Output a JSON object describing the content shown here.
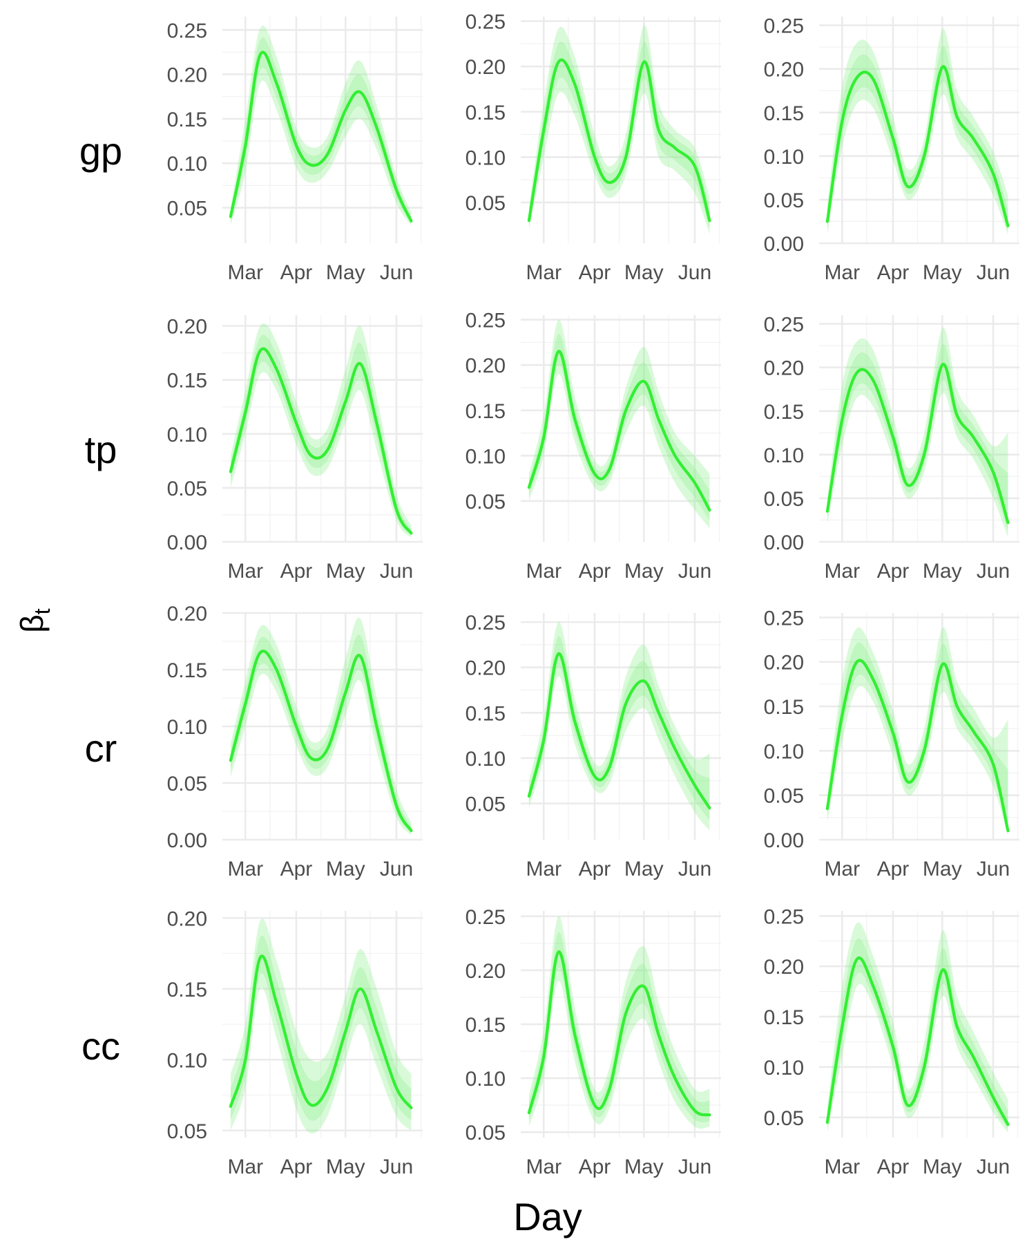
{
  "figure": {
    "xlabel": "Day",
    "ylabel": "β",
    "ylabel_sub": "t",
    "row_labels": [
      "gp",
      "tp",
      "cr",
      "cc"
    ],
    "colors": {
      "line": "#33ee33",
      "band": "#88f088"
    }
  },
  "chart_data": [
    {
      "row": "gp",
      "col": 1,
      "type": "line",
      "x": [
        "Feb 20",
        "Mar 1",
        "Mar 10",
        "Mar 20",
        "Apr 1",
        "Apr 10",
        "Apr 20",
        "May 1",
        "May 10",
        "May 20",
        "Jun 1",
        "Jun 10"
      ],
      "y": [
        0.04,
        0.12,
        0.222,
        0.19,
        0.12,
        0.098,
        0.11,
        0.16,
        0.18,
        0.14,
        0.07,
        0.035
      ],
      "band_outer_lo": [
        0.03,
        0.09,
        0.19,
        0.16,
        0.095,
        0.078,
        0.09,
        0.13,
        0.15,
        0.115,
        0.055,
        0.03
      ],
      "band_outer_hi": [
        0.05,
        0.15,
        0.252,
        0.22,
        0.14,
        0.118,
        0.13,
        0.19,
        0.215,
        0.165,
        0.085,
        0.045
      ],
      "ylim": [
        0.01,
        0.265
      ],
      "yticks": [
        "0.05",
        "0.10",
        "0.15",
        "0.20",
        "0.25"
      ],
      "xticks": [
        "Mar",
        "Apr",
        "May",
        "Jun"
      ]
    },
    {
      "row": "gp",
      "col": 2,
      "type": "line",
      "x": [
        "Feb 20",
        "Mar 1",
        "Mar 10",
        "Mar 20",
        "Apr 1",
        "Apr 10",
        "Apr 20",
        "May 1",
        "May 10",
        "May 20",
        "Jun 1",
        "Jun 10"
      ],
      "y": [
        0.03,
        0.13,
        0.205,
        0.18,
        0.1,
        0.072,
        0.1,
        0.205,
        0.13,
        0.11,
        0.09,
        0.03
      ],
      "band_outer_lo": [
        0.02,
        0.1,
        0.17,
        0.145,
        0.08,
        0.055,
        0.08,
        0.17,
        0.1,
        0.085,
        0.06,
        0.015
      ],
      "band_outer_hi": [
        0.045,
        0.16,
        0.242,
        0.21,
        0.125,
        0.09,
        0.125,
        0.245,
        0.16,
        0.13,
        0.11,
        0.055
      ],
      "ylim": [
        0.005,
        0.255
      ],
      "yticks": [
        "0.05",
        "0.10",
        "0.15",
        "0.20",
        "0.25"
      ],
      "xticks": [
        "Mar",
        "Apr",
        "May",
        "Jun"
      ]
    },
    {
      "row": "gp",
      "col": 3,
      "type": "line",
      "x": [
        "Feb 20",
        "Mar 1",
        "Mar 10",
        "Mar 20",
        "Apr 1",
        "Apr 10",
        "Apr 20",
        "May 1",
        "May 10",
        "May 20",
        "Jun 1",
        "Jun 10"
      ],
      "y": [
        0.025,
        0.14,
        0.19,
        0.188,
        0.12,
        0.065,
        0.1,
        0.202,
        0.145,
        0.12,
        0.08,
        0.02
      ],
      "band_outer_lo": [
        0.01,
        0.11,
        0.16,
        0.155,
        0.095,
        0.05,
        0.08,
        0.17,
        0.12,
        0.095,
        0.055,
        0.01
      ],
      "band_outer_hi": [
        0.045,
        0.18,
        0.23,
        0.22,
        0.145,
        0.085,
        0.12,
        0.245,
        0.175,
        0.145,
        0.105,
        0.055
      ],
      "ylim": [
        0.0,
        0.26
      ],
      "yticks": [
        "0.00",
        "0.05",
        "0.10",
        "0.15",
        "0.20",
        "0.25"
      ],
      "xticks": [
        "Mar",
        "Apr",
        "May",
        "Jun"
      ]
    },
    {
      "row": "tp",
      "col": 1,
      "type": "line",
      "x": [
        "Feb 20",
        "Mar 1",
        "Mar 10",
        "Mar 20",
        "Apr 1",
        "Apr 10",
        "Apr 20",
        "May 1",
        "May 10",
        "May 20",
        "Jun 1",
        "Jun 10"
      ],
      "y": [
        0.065,
        0.12,
        0.177,
        0.16,
        0.11,
        0.08,
        0.085,
        0.13,
        0.165,
        0.11,
        0.03,
        0.008
      ],
      "band_outer_lo": [
        0.05,
        0.1,
        0.155,
        0.14,
        0.09,
        0.063,
        0.068,
        0.11,
        0.14,
        0.085,
        0.02,
        0.004
      ],
      "band_outer_hi": [
        0.08,
        0.14,
        0.2,
        0.185,
        0.13,
        0.097,
        0.105,
        0.16,
        0.2,
        0.135,
        0.045,
        0.015
      ],
      "ylim": [
        0.0,
        0.21
      ],
      "yticks": [
        "0.00",
        "0.05",
        "0.10",
        "0.15",
        "0.20"
      ],
      "xticks": [
        "Mar",
        "Apr",
        "May",
        "Jun"
      ]
    },
    {
      "row": "tp",
      "col": 2,
      "type": "line",
      "x": [
        "Feb 20",
        "Mar 1",
        "Mar 10",
        "Mar 20",
        "Apr 1",
        "Apr 10",
        "Apr 20",
        "May 1",
        "May 10",
        "May 20",
        "Jun 1",
        "Jun 10"
      ],
      "y": [
        0.065,
        0.12,
        0.215,
        0.14,
        0.08,
        0.085,
        0.15,
        0.182,
        0.14,
        0.1,
        0.07,
        0.04
      ],
      "band_outer_lo": [
        0.05,
        0.1,
        0.19,
        0.115,
        0.065,
        0.07,
        0.125,
        0.155,
        0.11,
        0.07,
        0.04,
        0.02
      ],
      "band_outer_hi": [
        0.08,
        0.145,
        0.25,
        0.165,
        0.095,
        0.1,
        0.175,
        0.22,
        0.17,
        0.125,
        0.1,
        0.08
      ],
      "ylim": [
        0.005,
        0.255
      ],
      "yticks": [
        "0.05",
        "0.10",
        "0.15",
        "0.20",
        "0.25"
      ],
      "xticks": [
        "Mar",
        "Apr",
        "May",
        "Jun"
      ]
    },
    {
      "row": "tp",
      "col": 3,
      "type": "line",
      "x": [
        "Feb 20",
        "Mar 1",
        "Mar 10",
        "Mar 20",
        "Apr 1",
        "Apr 10",
        "Apr 20",
        "May 1",
        "May 10",
        "May 20",
        "Jun 1",
        "Jun 10"
      ],
      "y": [
        0.035,
        0.14,
        0.194,
        0.185,
        0.12,
        0.065,
        0.1,
        0.203,
        0.145,
        0.12,
        0.08,
        0.022
      ],
      "band_outer_lo": [
        0.02,
        0.11,
        0.165,
        0.155,
        0.095,
        0.05,
        0.08,
        0.17,
        0.12,
        0.095,
        0.05,
        0.005
      ],
      "band_outer_hi": [
        0.05,
        0.18,
        0.23,
        0.22,
        0.145,
        0.085,
        0.125,
        0.245,
        0.175,
        0.145,
        0.11,
        0.125
      ],
      "ylim": [
        0.0,
        0.26
      ],
      "yticks": [
        "0.00",
        "0.05",
        "0.10",
        "0.15",
        "0.20",
        "0.25"
      ],
      "xticks": [
        "Mar",
        "Apr",
        "May",
        "Jun"
      ]
    },
    {
      "row": "cr",
      "col": 1,
      "type": "line",
      "x": [
        "Feb 20",
        "Mar 1",
        "Mar 10",
        "Mar 20",
        "Apr 1",
        "Apr 10",
        "Apr 20",
        "May 1",
        "May 10",
        "May 20",
        "Jun 1",
        "Jun 10"
      ],
      "y": [
        0.07,
        0.12,
        0.165,
        0.15,
        0.1,
        0.072,
        0.08,
        0.13,
        0.162,
        0.1,
        0.03,
        0.008
      ],
      "band_outer_lo": [
        0.055,
        0.1,
        0.145,
        0.13,
        0.083,
        0.058,
        0.064,
        0.11,
        0.14,
        0.078,
        0.02,
        0.004
      ],
      "band_outer_hi": [
        0.085,
        0.14,
        0.188,
        0.172,
        0.118,
        0.087,
        0.098,
        0.16,
        0.195,
        0.125,
        0.045,
        0.015
      ],
      "ylim": [
        0.0,
        0.2
      ],
      "yticks": [
        "0.00",
        "0.05",
        "0.10",
        "0.15",
        "0.20"
      ],
      "xticks": [
        "Mar",
        "Apr",
        "May",
        "Jun"
      ]
    },
    {
      "row": "cr",
      "col": 2,
      "type": "line",
      "x": [
        "Feb 20",
        "Mar 1",
        "Mar 10",
        "Mar 20",
        "Apr 1",
        "Apr 10",
        "Apr 20",
        "May 1",
        "May 10",
        "May 20",
        "Jun 1",
        "Jun 10"
      ],
      "y": [
        0.058,
        0.12,
        0.215,
        0.14,
        0.08,
        0.09,
        0.16,
        0.185,
        0.15,
        0.11,
        0.07,
        0.045
      ],
      "band_outer_lo": [
        0.045,
        0.1,
        0.19,
        0.115,
        0.065,
        0.072,
        0.13,
        0.155,
        0.12,
        0.08,
        0.04,
        0.02
      ],
      "band_outer_hi": [
        0.075,
        0.145,
        0.25,
        0.165,
        0.095,
        0.11,
        0.19,
        0.225,
        0.18,
        0.135,
        0.1,
        0.105
      ],
      "ylim": [
        0.01,
        0.26
      ],
      "yticks": [
        "0.05",
        "0.10",
        "0.15",
        "0.20",
        "0.25"
      ],
      "xticks": [
        "Mar",
        "Apr",
        "May",
        "Jun"
      ]
    },
    {
      "row": "cr",
      "col": 3,
      "type": "line",
      "x": [
        "Feb 20",
        "Mar 1",
        "Mar 10",
        "Mar 20",
        "Apr 1",
        "Apr 10",
        "Apr 20",
        "May 1",
        "May 10",
        "May 20",
        "Jun 1",
        "Jun 10"
      ],
      "y": [
        0.035,
        0.14,
        0.2,
        0.18,
        0.12,
        0.065,
        0.1,
        0.197,
        0.15,
        0.122,
        0.085,
        0.01
      ],
      "band_outer_lo": [
        0.02,
        0.11,
        0.17,
        0.155,
        0.095,
        0.05,
        0.08,
        0.165,
        0.125,
        0.1,
        0.06,
        0.005
      ],
      "band_outer_hi": [
        0.05,
        0.18,
        0.238,
        0.21,
        0.145,
        0.085,
        0.125,
        0.238,
        0.178,
        0.148,
        0.115,
        0.135
      ],
      "ylim": [
        0.0,
        0.255
      ],
      "yticks": [
        "0.00",
        "0.05",
        "0.10",
        "0.15",
        "0.20",
        "0.25"
      ],
      "xticks": [
        "Mar",
        "Apr",
        "May",
        "Jun"
      ]
    },
    {
      "row": "cc",
      "col": 1,
      "type": "line",
      "x": [
        "Feb 20",
        "Mar 1",
        "Mar 10",
        "Mar 20",
        "Apr 1",
        "Apr 10",
        "Apr 20",
        "May 1",
        "May 10",
        "May 20",
        "Jun 1",
        "Jun 10"
      ],
      "y": [
        0.067,
        0.1,
        0.172,
        0.14,
        0.09,
        0.068,
        0.08,
        0.12,
        0.15,
        0.12,
        0.08,
        0.066
      ],
      "band_outer_lo": [
        0.05,
        0.08,
        0.15,
        0.115,
        0.065,
        0.048,
        0.06,
        0.1,
        0.125,
        0.095,
        0.06,
        0.05
      ],
      "band_outer_hi": [
        0.09,
        0.125,
        0.198,
        0.17,
        0.12,
        0.1,
        0.105,
        0.145,
        0.178,
        0.15,
        0.105,
        0.09
      ],
      "ylim": [
        0.045,
        0.205
      ],
      "yticks": [
        "0.05",
        "0.10",
        "0.15",
        "0.20"
      ],
      "xticks": [
        "Mar",
        "Apr",
        "May",
        "Jun"
      ]
    },
    {
      "row": "cc",
      "col": 2,
      "type": "line",
      "x": [
        "Feb 20",
        "Mar 1",
        "Mar 10",
        "Mar 20",
        "Apr 1",
        "Apr 10",
        "Apr 20",
        "May 1",
        "May 10",
        "May 20",
        "Jun 1",
        "Jun 10"
      ],
      "y": [
        0.068,
        0.12,
        0.217,
        0.14,
        0.075,
        0.09,
        0.16,
        0.185,
        0.14,
        0.1,
        0.07,
        0.066
      ],
      "band_outer_lo": [
        0.055,
        0.1,
        0.19,
        0.115,
        0.06,
        0.072,
        0.13,
        0.155,
        0.115,
        0.078,
        0.055,
        0.055
      ],
      "band_outer_hi": [
        0.085,
        0.145,
        0.25,
        0.165,
        0.09,
        0.11,
        0.19,
        0.222,
        0.17,
        0.125,
        0.09,
        0.09
      ],
      "ylim": [
        0.045,
        0.255
      ],
      "yticks": [
        "0.05",
        "0.10",
        "0.15",
        "0.20",
        "0.25"
      ],
      "xticks": [
        "Mar",
        "Apr",
        "May",
        "Jun"
      ]
    },
    {
      "row": "cc",
      "col": 3,
      "type": "line",
      "x": [
        "Feb 20",
        "Mar 1",
        "Mar 10",
        "Mar 20",
        "Apr 1",
        "Apr 10",
        "Apr 20",
        "May 1",
        "May 10",
        "May 20",
        "Jun 1",
        "Jun 10"
      ],
      "y": [
        0.045,
        0.14,
        0.207,
        0.18,
        0.12,
        0.062,
        0.1,
        0.196,
        0.14,
        0.11,
        0.07,
        0.043
      ],
      "band_outer_lo": [
        0.035,
        0.11,
        0.18,
        0.16,
        0.1,
        0.05,
        0.08,
        0.17,
        0.12,
        0.09,
        0.055,
        0.035
      ],
      "band_outer_hi": [
        0.06,
        0.18,
        0.243,
        0.21,
        0.145,
        0.078,
        0.125,
        0.235,
        0.17,
        0.135,
        0.095,
        0.068
      ],
      "ylim": [
        0.03,
        0.255
      ],
      "yticks": [
        "0.05",
        "0.10",
        "0.15",
        "0.20",
        "0.25"
      ],
      "xticks": [
        "Mar",
        "Apr",
        "May",
        "Jun"
      ]
    }
  ]
}
